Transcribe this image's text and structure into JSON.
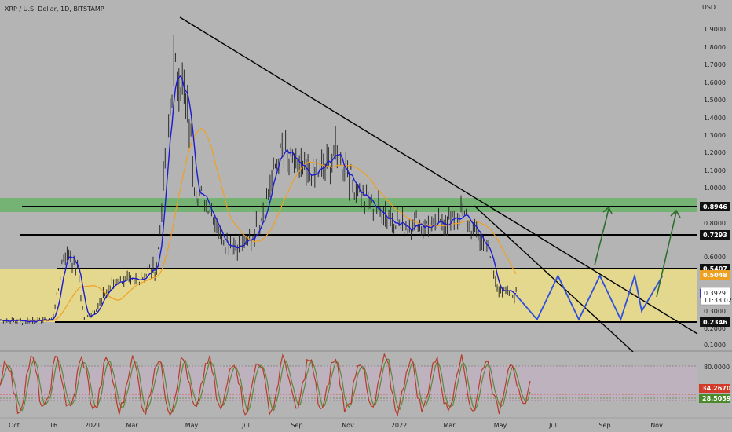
{
  "header": {
    "title": "XRP / U.S. Dollar, 1D, BITSTAMP"
  },
  "chart_data": {
    "type": "line",
    "title": "XRP / U.S. Dollar, 1D, BITSTAMP",
    "currency": "USD",
    "colors": {
      "background": "#b4b4b4",
      "price": "#2b2b2b",
      "ma_fast": "#1c1cd0",
      "ma_slow": "#f0a020",
      "trendline": "#000000",
      "support_line": "#000000",
      "yellow_zone": "#e8dc88",
      "green_zone": "#6ab36a",
      "projection": "#2f4fdc",
      "arrow": "#2d6e2d",
      "stoch_k": "#b83a2a",
      "stoch_d": "#5a8a3a"
    },
    "y_ticks": [
      "1.9000",
      "1.8000",
      "1.7000",
      "1.6000",
      "1.5000",
      "1.4000",
      "1.3000",
      "1.2000",
      "1.1000",
      "1.0000",
      "0.9000",
      "0.8000",
      "0.6000",
      "0.3000",
      "0.2000",
      "0.1000"
    ],
    "x_ticks": [
      "Oct",
      "16",
      "2021",
      "Mar",
      "May",
      "Jul",
      "Sep",
      "Nov",
      "2022",
      "Mar",
      "May",
      "Jul",
      "Sep",
      "Nov"
    ],
    "levels": [
      {
        "label": "0.8946",
        "value": 0.8946,
        "style": "dark"
      },
      {
        "label": "0.7293",
        "value": 0.7293,
        "style": "dark"
      },
      {
        "label": "0.5407",
        "value": 0.5407,
        "style": "dark"
      },
      {
        "label": "0.2346",
        "value": 0.2346,
        "style": "dark"
      }
    ],
    "price_tags": [
      {
        "label": "0.5048",
        "value": 0.5048,
        "color": "#f0a020"
      },
      {
        "label": "0.3977",
        "value": 0.3977,
        "color": "#1c1cd0"
      }
    ],
    "current": {
      "price": "0.3929",
      "countdown": "11:33:02"
    },
    "zones": [
      {
        "name": "yellow_zone",
        "from": 0.2346,
        "to": 0.5407
      },
      {
        "name": "green_zone",
        "from": 0.8946,
        "to": 0.945
      }
    ],
    "price_anchors": [
      [
        0,
        0.246
      ],
      [
        0.04,
        0.241
      ],
      [
        0.06,
        0.245
      ],
      [
        0.075,
        0.25
      ],
      [
        0.083,
        0.4
      ],
      [
        0.09,
        0.6
      ],
      [
        0.1,
        0.62
      ],
      [
        0.113,
        0.5
      ],
      [
        0.12,
        0.25
      ],
      [
        0.14,
        0.32
      ],
      [
        0.15,
        0.4
      ],
      [
        0.17,
        0.48
      ],
      [
        0.19,
        0.46
      ],
      [
        0.205,
        0.5
      ],
      [
        0.225,
        0.55
      ],
      [
        0.24,
        1.3
      ],
      [
        0.25,
        1.7
      ],
      [
        0.26,
        1.6
      ],
      [
        0.27,
        1.4
      ],
      [
        0.28,
        1.0
      ],
      [
        0.3,
        0.9
      ],
      [
        0.32,
        0.7
      ],
      [
        0.34,
        0.66
      ],
      [
        0.36,
        0.7
      ],
      [
        0.38,
        0.9
      ],
      [
        0.4,
        1.2
      ],
      [
        0.42,
        1.15
      ],
      [
        0.44,
        1.05
      ],
      [
        0.46,
        1.1
      ],
      [
        0.48,
        1.2
      ],
      [
        0.5,
        1.08
      ],
      [
        0.52,
        0.95
      ],
      [
        0.54,
        0.88
      ],
      [
        0.56,
        0.83
      ],
      [
        0.58,
        0.78
      ],
      [
        0.6,
        0.8
      ],
      [
        0.62,
        0.77
      ],
      [
        0.64,
        0.81
      ],
      [
        0.66,
        0.84
      ],
      [
        0.67,
        0.82
      ],
      [
        0.68,
        0.76
      ],
      [
        0.7,
        0.64
      ],
      [
        0.71,
        0.46
      ],
      [
        0.72,
        0.41
      ],
      [
        0.74,
        0.39
      ]
    ],
    "projection": [
      [
        0.74,
        0.39
      ],
      [
        0.77,
        0.25
      ],
      [
        0.8,
        0.5
      ],
      [
        0.83,
        0.25
      ],
      [
        0.86,
        0.5
      ],
      [
        0.89,
        0.25
      ],
      [
        0.91,
        0.5
      ],
      [
        0.92,
        0.3
      ],
      [
        0.95,
        0.5
      ]
    ],
    "stoch": {
      "ticks": [
        "80.0000"
      ],
      "tags": [
        {
          "label": "34.2670",
          "value": 34.267,
          "color": "#d23a2a"
        },
        {
          "label": "28.5059",
          "value": 28.5059,
          "color": "#4a8a2a"
        }
      ]
    }
  }
}
